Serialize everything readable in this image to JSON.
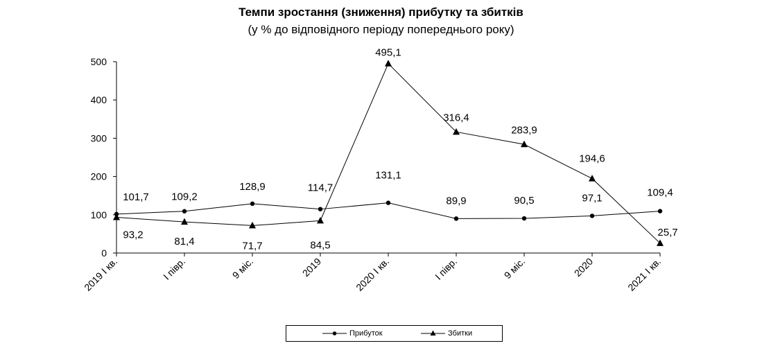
{
  "chart_data": {
    "type": "line",
    "title": "Темпи зростання (зниження) прибутку та збитків",
    "subtitle": "(у % до відповідного періоду попереднього року)",
    "categories": [
      "2019 І кв.",
      "І півр.",
      "9 міс.",
      "2019",
      "2020 І кв.",
      "І півр.",
      "9 міс.",
      "2020",
      "2021 І кв."
    ],
    "series": [
      {
        "name": "Прибуток",
        "marker": "circle",
        "values": [
          101.7,
          109.2,
          128.9,
          114.7,
          131.1,
          89.9,
          90.5,
          97.1,
          109.4
        ],
        "labels": [
          "101,7",
          "109,2",
          "128,9",
          "114,7",
          "131,1",
          "89,9",
          "90,5",
          "97,1",
          "109,4"
        ]
      },
      {
        "name": "Збитки",
        "marker": "triangle",
        "values": [
          93.2,
          81.4,
          71.7,
          84.5,
          495.1,
          316.4,
          283.9,
          194.6,
          25.7
        ],
        "labels": [
          "93,2",
          "81,4",
          "71,7",
          "84,5",
          "495,1",
          "316,4",
          "283,9",
          "194,6",
          "25,7"
        ]
      }
    ],
    "ylim": [
      0,
      500
    ],
    "yticks": [
      "0",
      "100",
      "200",
      "300",
      "400",
      "500"
    ],
    "grid": false,
    "legend_position": "bottom",
    "line_color": "#000000"
  }
}
